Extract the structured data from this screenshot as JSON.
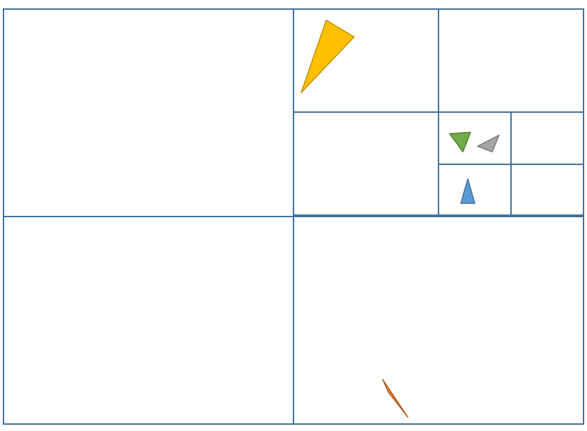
{
  "diagram": {
    "type": "quadtree-decomposition",
    "colors": {
      "background": "#ffffff",
      "cell_border": "#41719C"
    },
    "cells": [
      {
        "name": "root-top-left-cell",
        "depth": 1,
        "occupied": false
      },
      {
        "name": "root-bottom-left-cell",
        "depth": 1,
        "occupied": false
      },
      {
        "name": "root-bottom-right-cell",
        "depth": 1,
        "occupied": true
      },
      {
        "name": "root-top-right-quadrant",
        "depth": 1,
        "occupied": true
      },
      {
        "name": "level2-top-left-cell",
        "depth": 2,
        "occupied": true
      },
      {
        "name": "level2-top-right-cell",
        "depth": 2,
        "occupied": false
      },
      {
        "name": "level2-bottom-left-cell",
        "depth": 2,
        "occupied": false
      },
      {
        "name": "level2-bottom-right-quadrant",
        "depth": 2,
        "occupied": true
      },
      {
        "name": "level3-top-left-cell",
        "depth": 3,
        "occupied": true
      },
      {
        "name": "level3-top-right-cell",
        "depth": 3,
        "occupied": false
      },
      {
        "name": "level3-bottom-left-cell",
        "depth": 3,
        "occupied": true
      },
      {
        "name": "level3-bottom-right-cell",
        "depth": 3,
        "occupied": false
      }
    ],
    "shapes": [
      {
        "name": "yellow-triangle",
        "fill": "#FFC000",
        "stroke": "#BF9000"
      },
      {
        "name": "green-triangle",
        "fill": "#70AD47",
        "stroke": "#507E32"
      },
      {
        "name": "gray-triangle",
        "fill": "#A5A5A5",
        "stroke": "#787878"
      },
      {
        "name": "blue-triangle",
        "fill": "#5B9BD5",
        "stroke": "#41719C"
      },
      {
        "name": "orange-triangle",
        "fill": "#ED7D31",
        "stroke": "#AE5A21"
      }
    ]
  }
}
